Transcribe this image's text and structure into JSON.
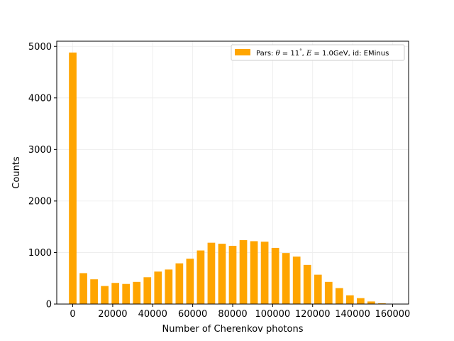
{
  "chart_data": {
    "type": "bar",
    "xlabel": "Number of Cherenkov photons",
    "ylabel": "Counts",
    "title": "",
    "xlim": [
      -8000,
      168000
    ],
    "ylim": [
      0,
      5100
    ],
    "xticks": [
      0,
      20000,
      40000,
      60000,
      80000,
      100000,
      120000,
      140000,
      160000
    ],
    "xtick_labels": [
      "0",
      "20000",
      "40000",
      "60000",
      "80000",
      "100000",
      "120000",
      "140000",
      "160000"
    ],
    "yticks": [
      0,
      1000,
      2000,
      3000,
      4000,
      5000
    ],
    "ytick_labels": [
      "0",
      "1000",
      "2000",
      "3000",
      "4000",
      "5000"
    ],
    "grid": true,
    "legend_position": "top-right",
    "bar_width": 3800,
    "series": [
      {
        "legend": {
          "prefix": "Pars: ",
          "theta_sym": "θ",
          "theta_val": " = 11",
          "theta_unit": "°",
          "sep": ", ",
          "e_sym": "E",
          "e_val": " = 1.0GeV, id: EMinus"
        },
        "color": "#ffa500",
        "x": [
          0,
          5333,
          10667,
          16000,
          21333,
          26667,
          32000,
          37333,
          42667,
          48000,
          53333,
          58667,
          64000,
          69333,
          74667,
          80000,
          85333,
          90667,
          96000,
          101333,
          106667,
          112000,
          117333,
          122667,
          128000,
          133333,
          138667,
          144000,
          149333,
          154667
        ],
        "values": [
          4880,
          600,
          480,
          350,
          410,
          390,
          430,
          520,
          630,
          670,
          790,
          880,
          1040,
          1190,
          1170,
          1130,
          1240,
          1220,
          1210,
          1090,
          990,
          920,
          760,
          570,
          430,
          310,
          170,
          115,
          50,
          15
        ]
      }
    ]
  }
}
